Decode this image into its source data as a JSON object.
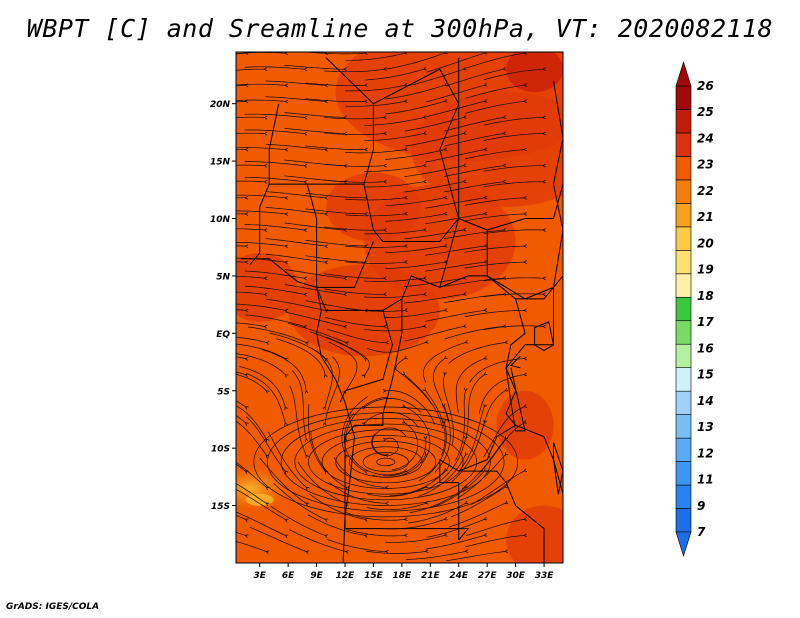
{
  "title": "WBPT [C] and Sreamline at 300hPa, VT: 2020082118",
  "credit": "GrADS: IGES/COLA",
  "map": {
    "variable": "Wet-bulb potential temperature",
    "lat_labels": [
      "20N",
      "15N",
      "10N",
      "5N",
      "EQ",
      "5S",
      "10S",
      "15S"
    ],
    "lat_values": [
      20,
      15,
      10,
      5,
      0,
      -5,
      -10,
      -15
    ],
    "lon_labels": [
      "3E",
      "6E",
      "9E",
      "12E",
      "15E",
      "18E",
      "21E",
      "24E",
      "27E",
      "30E",
      "33E"
    ],
    "lon_values": [
      3,
      6,
      9,
      12,
      15,
      18,
      21,
      24,
      27,
      30,
      33
    ],
    "lon_range": [
      0.5,
      35
    ],
    "lat_range": [
      -20,
      24.5
    ],
    "vortex_center": {
      "lon": 16.3,
      "lat": -11.2
    },
    "fill_colors": {
      "base": "#f05a00",
      "warm": "#e03a0a",
      "hot": "#c81e0a",
      "cool": "#f58a14",
      "coolest": "#f8b830"
    }
  },
  "colorbar": {
    "labels": [
      "7",
      "9",
      "11",
      "12",
      "13",
      "14",
      "15",
      "16",
      "17",
      "18",
      "19",
      "20",
      "21",
      "22",
      "23",
      "24",
      "25",
      "26"
    ],
    "colors": [
      "#1e6ee6",
      "#2882f0",
      "#3c96f5",
      "#5aaaf5",
      "#78bef5",
      "#a0d2f8",
      "#d2f0f8",
      "#b4f0a0",
      "#78dc64",
      "#3cc83c",
      "#fff0a8",
      "#fde070",
      "#fbc848",
      "#f8a020",
      "#f57d0a",
      "#f05a00",
      "#dc3214",
      "#c01e0a",
      "#a00a0a"
    ],
    "low_arrow_color": "#1e6ee6",
    "high_arrow_color": "#a00a0a"
  }
}
